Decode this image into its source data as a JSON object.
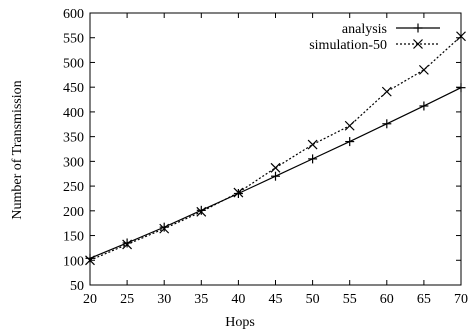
{
  "chart_data": {
    "type": "line",
    "title": "",
    "xlabel": "Hops",
    "ylabel": "Number of Transmission",
    "xlim": [
      20,
      70
    ],
    "ylim": [
      50,
      600
    ],
    "xticks": [
      20,
      25,
      30,
      35,
      40,
      45,
      50,
      55,
      60,
      65,
      70
    ],
    "yticks": [
      50,
      100,
      150,
      200,
      250,
      300,
      350,
      400,
      450,
      500,
      550,
      600
    ],
    "grid": false,
    "legend_position": "top-right",
    "x": [
      20,
      25,
      30,
      35,
      40,
      45,
      50,
      55,
      60,
      65,
      70
    ],
    "series": [
      {
        "name": "analysis",
        "marker": "plus",
        "line_style": "solid",
        "color": "#000000",
        "values": [
          104,
          135,
          167,
          201,
          235,
          270,
          305,
          340,
          376,
          412,
          449
        ]
      },
      {
        "name": "simulation-50",
        "marker": "x",
        "line_style": "dotted",
        "color": "#000000",
        "values": [
          100,
          132,
          164,
          198,
          237,
          287,
          334,
          372,
          441,
          485,
          553
        ]
      }
    ]
  }
}
